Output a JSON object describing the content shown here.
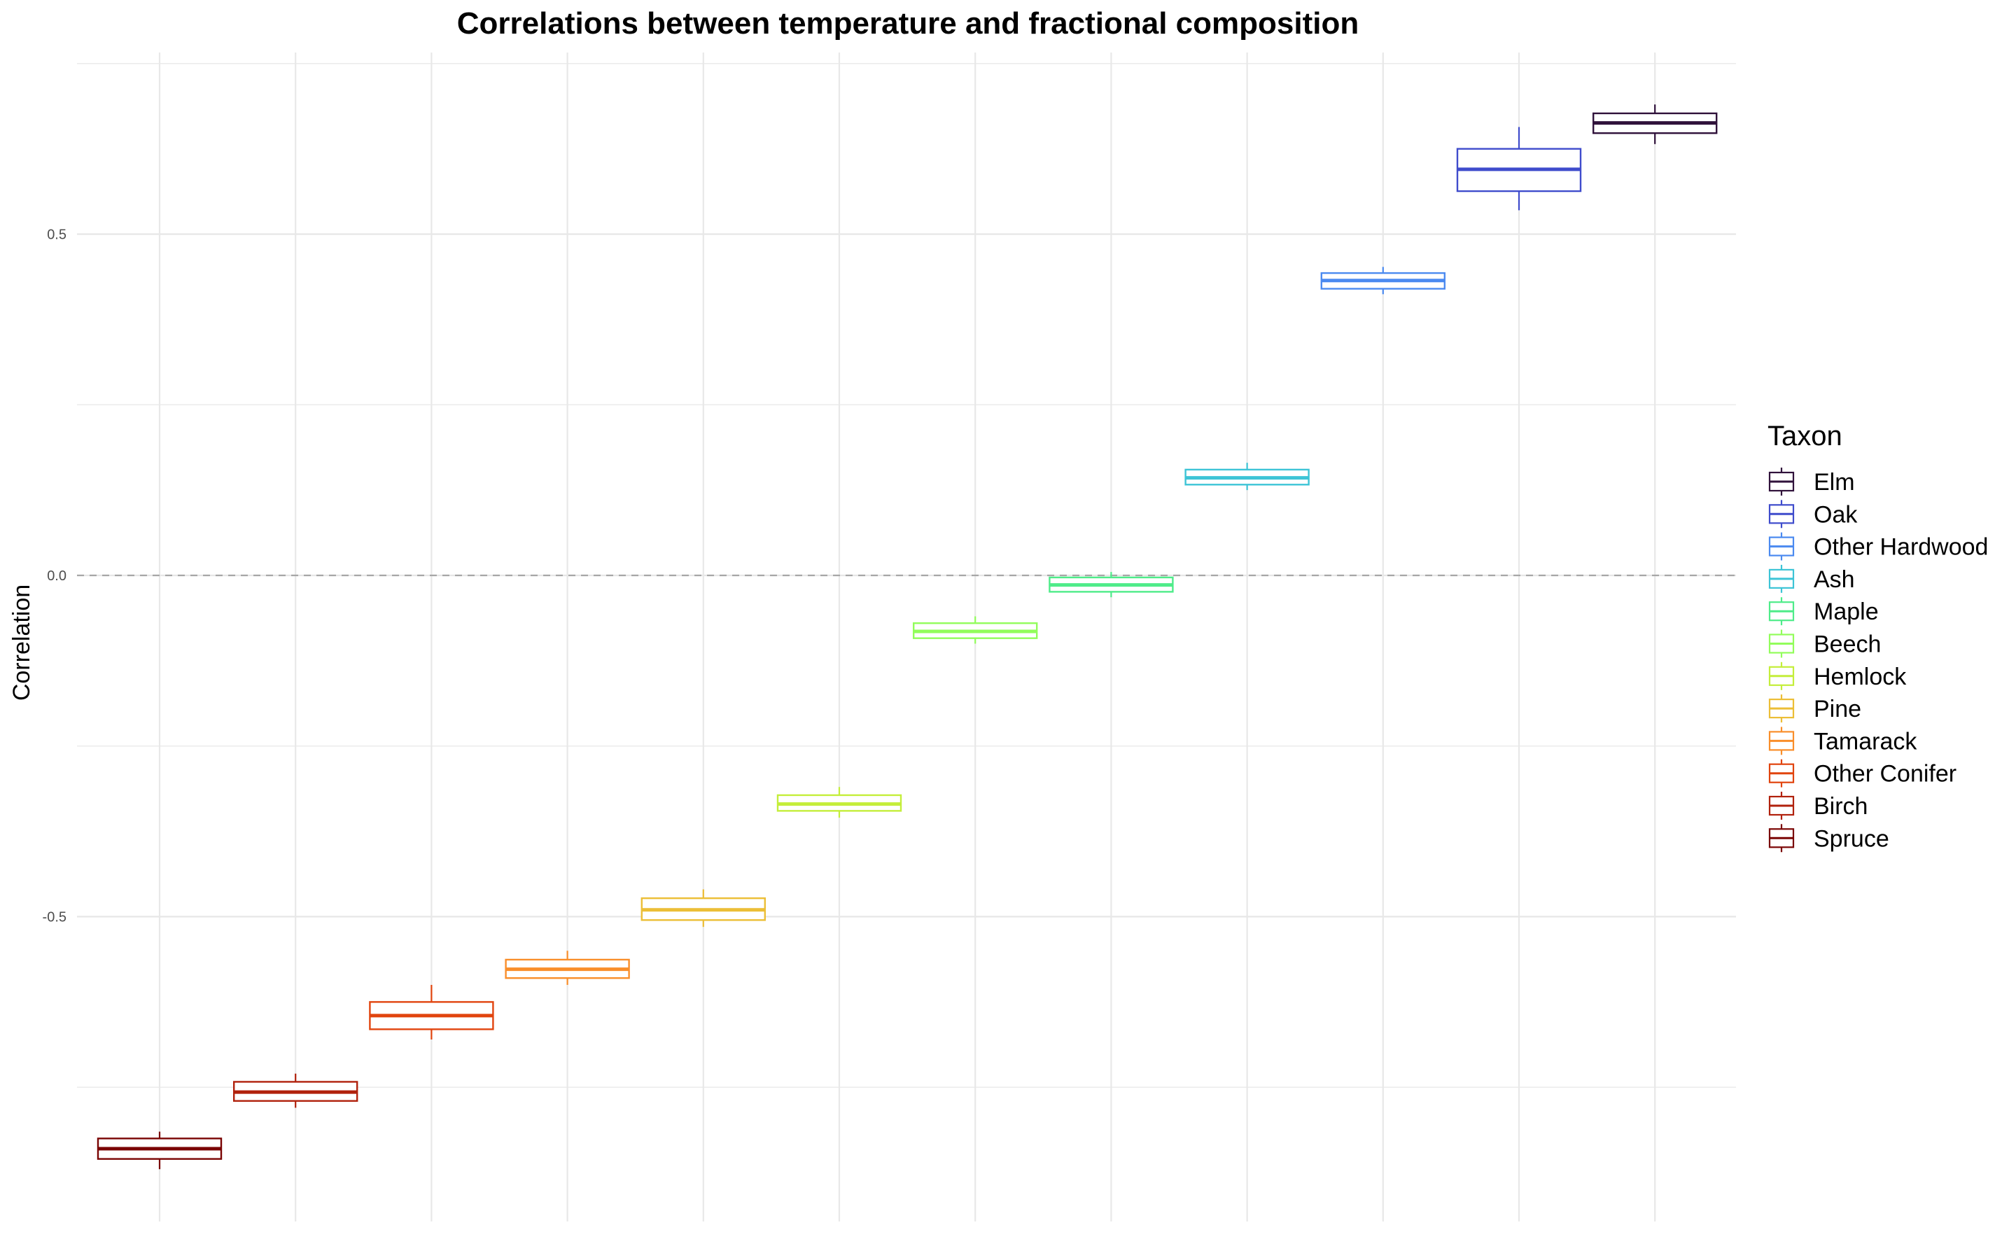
{
  "chart_data": {
    "type": "box",
    "title": "Correlations between temperature and fractional composition",
    "xlabel": "",
    "ylabel": "Correlation",
    "ylim": [
      -0.95,
      0.75
    ],
    "y_ticks": [
      -0.5,
      0.0,
      0.5
    ],
    "y_tick_labels": [
      "-0.5",
      "0.0",
      "0.5"
    ],
    "reference_line": {
      "y": 0.0,
      "style": "dashed"
    },
    "grid": true,
    "legend": {
      "title": "Taxon",
      "position": "right"
    },
    "categories": [
      "Spruce",
      "Birch",
      "Other Conifer",
      "Tamarack",
      "Pine",
      "Hemlock",
      "Beech",
      "Maple",
      "Ash",
      "Other Hardwood",
      "Oak",
      "Elm"
    ],
    "series": [
      {
        "name": "Spruce",
        "color": "#7a0403",
        "min": -0.87,
        "q1": -0.855,
        "median": -0.84,
        "q3": -0.825,
        "max": -0.815
      },
      {
        "name": "Birch",
        "color": "#b1210c",
        "min": -0.78,
        "q1": -0.77,
        "median": -0.757,
        "q3": -0.742,
        "max": -0.73
      },
      {
        "name": "Other Conifer",
        "color": "#e1440e",
        "min": -0.68,
        "q1": -0.665,
        "median": -0.645,
        "q3": -0.625,
        "max": -0.6
      },
      {
        "name": "Tamarack",
        "color": "#f98e2a",
        "min": -0.6,
        "q1": -0.59,
        "median": -0.577,
        "q3": -0.563,
        "max": -0.55
      },
      {
        "name": "Pine",
        "color": "#ecbe36",
        "min": -0.515,
        "q1": -0.505,
        "median": -0.49,
        "q3": -0.473,
        "max": -0.46
      },
      {
        "name": "Hemlock",
        "color": "#c4ee3a",
        "min": -0.355,
        "q1": -0.345,
        "median": -0.335,
        "q3": -0.322,
        "max": -0.31
      },
      {
        "name": "Beech",
        "color": "#92fd5b",
        "min": -0.1,
        "q1": -0.092,
        "median": -0.082,
        "q3": -0.07,
        "max": -0.06
      },
      {
        "name": "Maple",
        "color": "#4eec89",
        "min": -0.032,
        "q1": -0.024,
        "median": -0.014,
        "q3": -0.003,
        "max": 0.005
      },
      {
        "name": "Ash",
        "color": "#3dc4d6",
        "min": 0.125,
        "q1": 0.133,
        "median": 0.143,
        "q3": 0.155,
        "max": 0.165
      },
      {
        "name": "Other Hardwood",
        "color": "#4b8af0",
        "min": 0.412,
        "q1": 0.42,
        "median": 0.432,
        "q3": 0.443,
        "max": 0.452
      },
      {
        "name": "Oak",
        "color": "#3f4ccc",
        "min": 0.535,
        "q1": 0.563,
        "median": 0.595,
        "q3": 0.625,
        "max": 0.657
      },
      {
        "name": "Elm",
        "color": "#30123b",
        "min": 0.632,
        "q1": 0.648,
        "median": 0.663,
        "q3": 0.677,
        "max": 0.69
      }
    ],
    "legend_order": [
      "Elm",
      "Oak",
      "Other Hardwood",
      "Ash",
      "Maple",
      "Beech",
      "Hemlock",
      "Pine",
      "Tamarack",
      "Other Conifer",
      "Birch",
      "Spruce"
    ]
  }
}
